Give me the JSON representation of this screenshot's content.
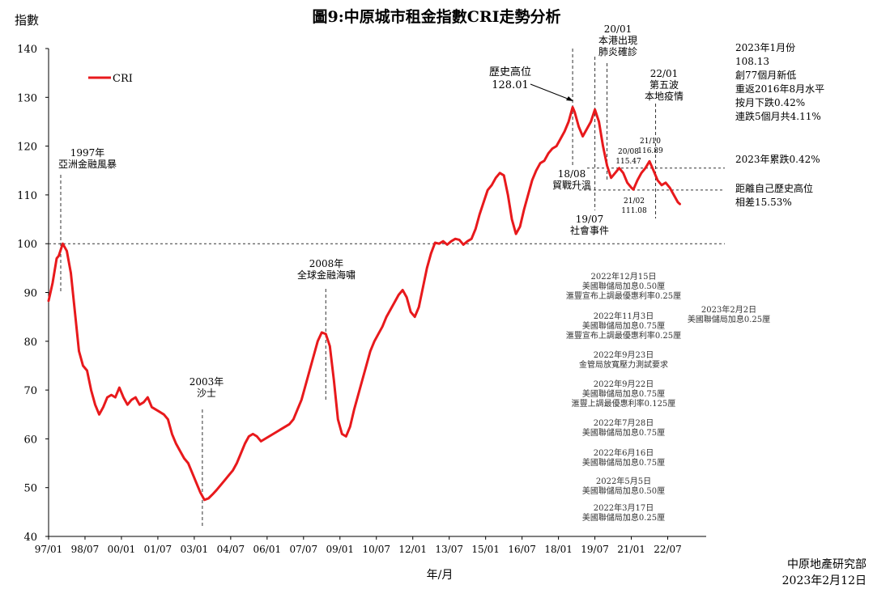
{
  "chart_data": {
    "type": "line",
    "title": "圖9:中原城市租金指數CRI走勢分析",
    "ylabel": "指數",
    "xlabel": "年/月",
    "ylim": [
      40,
      140
    ],
    "yticks": [
      "40",
      "50",
      "60",
      "70",
      "80",
      "90",
      "100",
      "110",
      "120",
      "130",
      "140"
    ],
    "xtick_labels": [
      "97/01",
      "98/07",
      "00/01",
      "01/07",
      "03/01",
      "04/07",
      "06/01",
      "07/07",
      "09/01",
      "10/07",
      "12/01",
      "13/07",
      "15/01",
      "16/07",
      "18/01",
      "19/07",
      "21/01",
      "22/07"
    ],
    "legend": {
      "position": "top-left",
      "entries": [
        "CRI"
      ]
    },
    "series": [
      {
        "name": "CRI",
        "color": "#e8191c",
        "points": [
          [
            "1997-01",
            88.3
          ],
          [
            "1997-03",
            92
          ],
          [
            "1997-05",
            97
          ],
          [
            "1997-06",
            97.5
          ],
          [
            "1997-08",
            100
          ],
          [
            "1997-10",
            98.5
          ],
          [
            "1997-12",
            94
          ],
          [
            "1998-02",
            86
          ],
          [
            "1998-04",
            78
          ],
          [
            "1998-06",
            75
          ],
          [
            "1998-08",
            74
          ],
          [
            "1998-10",
            70
          ],
          [
            "1998-12",
            67
          ],
          [
            "1999-02",
            65
          ],
          [
            "1999-04",
            66.5
          ],
          [
            "1999-06",
            68.5
          ],
          [
            "1999-08",
            69
          ],
          [
            "1999-10",
            68.5
          ],
          [
            "1999-12",
            70.5
          ],
          [
            "2000-02",
            68.5
          ],
          [
            "2000-04",
            67
          ],
          [
            "2000-06",
            68
          ],
          [
            "2000-08",
            68.5
          ],
          [
            "2000-10",
            67
          ],
          [
            "2000-12",
            67.5
          ],
          [
            "2001-02",
            68.5
          ],
          [
            "2001-04",
            66.5
          ],
          [
            "2001-06",
            66
          ],
          [
            "2001-08",
            65.5
          ],
          [
            "2001-10",
            65
          ],
          [
            "2001-12",
            64
          ],
          [
            "2002-02",
            61
          ],
          [
            "2002-04",
            59
          ],
          [
            "2002-06",
            57.5
          ],
          [
            "2002-08",
            56
          ],
          [
            "2002-10",
            55
          ],
          [
            "2002-12",
            53
          ],
          [
            "2003-02",
            51
          ],
          [
            "2003-04",
            49
          ],
          [
            "2003-06",
            47.5
          ],
          [
            "2003-08",
            47.8
          ],
          [
            "2003-10",
            48.6
          ],
          [
            "2003-12",
            49.5
          ],
          [
            "2004-02",
            50.5
          ],
          [
            "2004-04",
            51.5
          ],
          [
            "2004-06",
            52.5
          ],
          [
            "2004-08",
            53.5
          ],
          [
            "2004-10",
            55
          ],
          [
            "2004-12",
            57
          ],
          [
            "2005-02",
            59
          ],
          [
            "2005-04",
            60.5
          ],
          [
            "2005-06",
            61
          ],
          [
            "2005-08",
            60.5
          ],
          [
            "2005-10",
            59.5
          ],
          [
            "2005-12",
            60
          ],
          [
            "2006-02",
            60.5
          ],
          [
            "2006-04",
            61
          ],
          [
            "2006-06",
            61.5
          ],
          [
            "2006-08",
            62
          ],
          [
            "2006-10",
            62.5
          ],
          [
            "2006-12",
            63
          ],
          [
            "2007-02",
            64
          ],
          [
            "2007-04",
            66
          ],
          [
            "2007-06",
            68
          ],
          [
            "2007-08",
            71
          ],
          [
            "2007-10",
            74
          ],
          [
            "2007-12",
            77
          ],
          [
            "2008-02",
            80
          ],
          [
            "2008-04",
            81.8
          ],
          [
            "2008-06",
            81.5
          ],
          [
            "2008-08",
            79
          ],
          [
            "2008-10",
            72
          ],
          [
            "2008-12",
            64
          ],
          [
            "2009-02",
            61
          ],
          [
            "2009-04",
            60.5
          ],
          [
            "2009-06",
            62.5
          ],
          [
            "2009-08",
            66
          ],
          [
            "2009-10",
            69
          ],
          [
            "2009-12",
            72
          ],
          [
            "2010-02",
            75
          ],
          [
            "2010-04",
            78
          ],
          [
            "2010-06",
            80
          ],
          [
            "2010-08",
            81.5
          ],
          [
            "2010-10",
            83
          ],
          [
            "2010-12",
            85
          ],
          [
            "2011-02",
            86.5
          ],
          [
            "2011-04",
            88
          ],
          [
            "2011-06",
            89.5
          ],
          [
            "2011-08",
            90.5
          ],
          [
            "2011-10",
            89
          ],
          [
            "2011-12",
            86
          ],
          [
            "2012-02",
            85
          ],
          [
            "2012-04",
            87
          ],
          [
            "2012-06",
            91
          ],
          [
            "2012-08",
            95
          ],
          [
            "2012-10",
            98
          ],
          [
            "2012-12",
            100.2
          ],
          [
            "2013-02",
            100
          ],
          [
            "2013-04",
            100.5
          ],
          [
            "2013-06",
            99.8
          ],
          [
            "2013-08",
            100.5
          ],
          [
            "2013-10",
            101
          ],
          [
            "2013-12",
            100.8
          ],
          [
            "2014-02",
            99.8
          ],
          [
            "2014-04",
            100.5
          ],
          [
            "2014-06",
            101
          ],
          [
            "2014-08",
            103
          ],
          [
            "2014-10",
            106
          ],
          [
            "2014-12",
            108.5
          ],
          [
            "2015-02",
            111
          ],
          [
            "2015-04",
            112
          ],
          [
            "2015-06",
            113.5
          ],
          [
            "2015-08",
            114.5
          ],
          [
            "2015-10",
            114
          ],
          [
            "2015-12",
            110
          ],
          [
            "2016-02",
            105
          ],
          [
            "2016-04",
            102
          ],
          [
            "2016-06",
            103.5
          ],
          [
            "2016-08",
            107
          ],
          [
            "2016-10",
            110
          ],
          [
            "2016-12",
            113
          ],
          [
            "2017-02",
            115
          ],
          [
            "2017-04",
            116.5
          ],
          [
            "2017-06",
            117
          ],
          [
            "2017-08",
            118.5
          ],
          [
            "2017-10",
            119.5
          ],
          [
            "2017-12",
            120
          ],
          [
            "2018-02",
            121.5
          ],
          [
            "2018-04",
            123
          ],
          [
            "2018-06",
            125
          ],
          [
            "2018-08",
            128
          ],
          [
            "2018-09",
            127
          ],
          [
            "2018-11",
            124
          ],
          [
            "2019-01",
            122
          ],
          [
            "2019-03",
            123.5
          ],
          [
            "2019-05",
            125
          ],
          [
            "2019-07",
            127.5
          ],
          [
            "2019-09",
            125
          ],
          [
            "2019-11",
            120
          ],
          [
            "2020-01",
            116
          ],
          [
            "2020-03",
            113.5
          ],
          [
            "2020-05",
            114.5
          ],
          [
            "2020-07",
            115.5
          ],
          [
            "2020-09",
            114.5
          ],
          [
            "2020-11",
            112.5
          ],
          [
            "2021-01",
            111.5
          ],
          [
            "2021-02",
            111.1
          ],
          [
            "2021-04",
            113
          ],
          [
            "2021-06",
            114.5
          ],
          [
            "2021-08",
            115.5
          ],
          [
            "2021-10",
            116.9
          ],
          [
            "2021-12",
            115
          ],
          [
            "2022-02",
            113
          ],
          [
            "2022-04",
            112
          ],
          [
            "2022-06",
            112.5
          ],
          [
            "2022-08",
            111.5
          ],
          [
            "2022-10",
            110
          ],
          [
            "2022-12",
            108.5
          ],
          [
            "2023-01",
            108.13
          ]
        ]
      }
    ],
    "reference_lines": [
      {
        "y": 100,
        "style": "dashed"
      },
      {
        "y": 115.5,
        "style": "dashed"
      },
      {
        "y": 111,
        "style": "dashed"
      }
    ],
    "events": [
      {
        "date": "1997-07",
        "lines": [
          "1997年",
          "亞洲金融風暴"
        ]
      },
      {
        "date": "2003-05",
        "lines": [
          "2003年",
          "沙士"
        ]
      },
      {
        "date": "2008-06",
        "lines": [
          "2008年",
          "全球金融海嘯"
        ]
      },
      {
        "date": "2018-08",
        "lines": [
          "18/08",
          "貿戰升溫"
        ]
      },
      {
        "date": "2019-07",
        "lines": [
          "19/07",
          "社會事件"
        ]
      },
      {
        "date": "2020-01",
        "lines": [
          "20/01",
          "本港出現",
          "肺炎確診"
        ]
      },
      {
        "date": "2022-01",
        "lines": [
          "22/01",
          "第五波",
          "本地疫情"
        ]
      }
    ],
    "annotations": {
      "peak": [
        "歷史高位",
        "128.01"
      ],
      "latest": [
        "2023年1月份",
        "108.13",
        "創77個月新低",
        "重返2016年8月水平",
        "按月下跌0.42%",
        "連跌5個月共4.11%"
      ],
      "ytd": "2023年累跌0.42%",
      "gap": [
        "距離自己歷史高位",
        "相差15.53%"
      ],
      "p2008": [
        "20/08",
        "115.47"
      ],
      "p2110": [
        "21/10",
        "116.89"
      ],
      "p2102": [
        "21/02",
        "111.08"
      ]
    },
    "rate_notes": [
      {
        "date": "2022年12月15日",
        "text": "美國聯儲局加息0.50厘",
        "extra": "滙豐宣布上調最優惠利率0.25厘"
      },
      {
        "date": "2022年11月3日",
        "text": "美國聯儲局加息0.75厘",
        "extra": "滙豐宣布上調最優惠利率0.25厘"
      },
      {
        "date": "2022年9月23日",
        "text": "金管局放寬壓力測試要求",
        "extra": ""
      },
      {
        "date": "2022年9月22日",
        "text": "美國聯儲局加息0.75厘",
        "extra": "滙豐上調最優惠利率0.125厘"
      },
      {
        "date": "2022年7月28日",
        "text": "美國聯儲局加息0.75厘",
        "extra": ""
      },
      {
        "date": "2022年6月16日",
        "text": "美國聯儲局加息0.75厘",
        "extra": ""
      },
      {
        "date": "2022年5月5日",
        "text": "美國聯儲局加息0.50厘",
        "extra": ""
      },
      {
        "date": "2022年3月17日",
        "text": "美國聯儲局加息0.25厘",
        "extra": ""
      },
      {
        "date": "2023年2月2日",
        "text": "美國聯儲局加息0.25厘",
        "extra": ""
      }
    ]
  },
  "footer": {
    "source": "中原地產研究部",
    "date": "2023年2月12日"
  }
}
